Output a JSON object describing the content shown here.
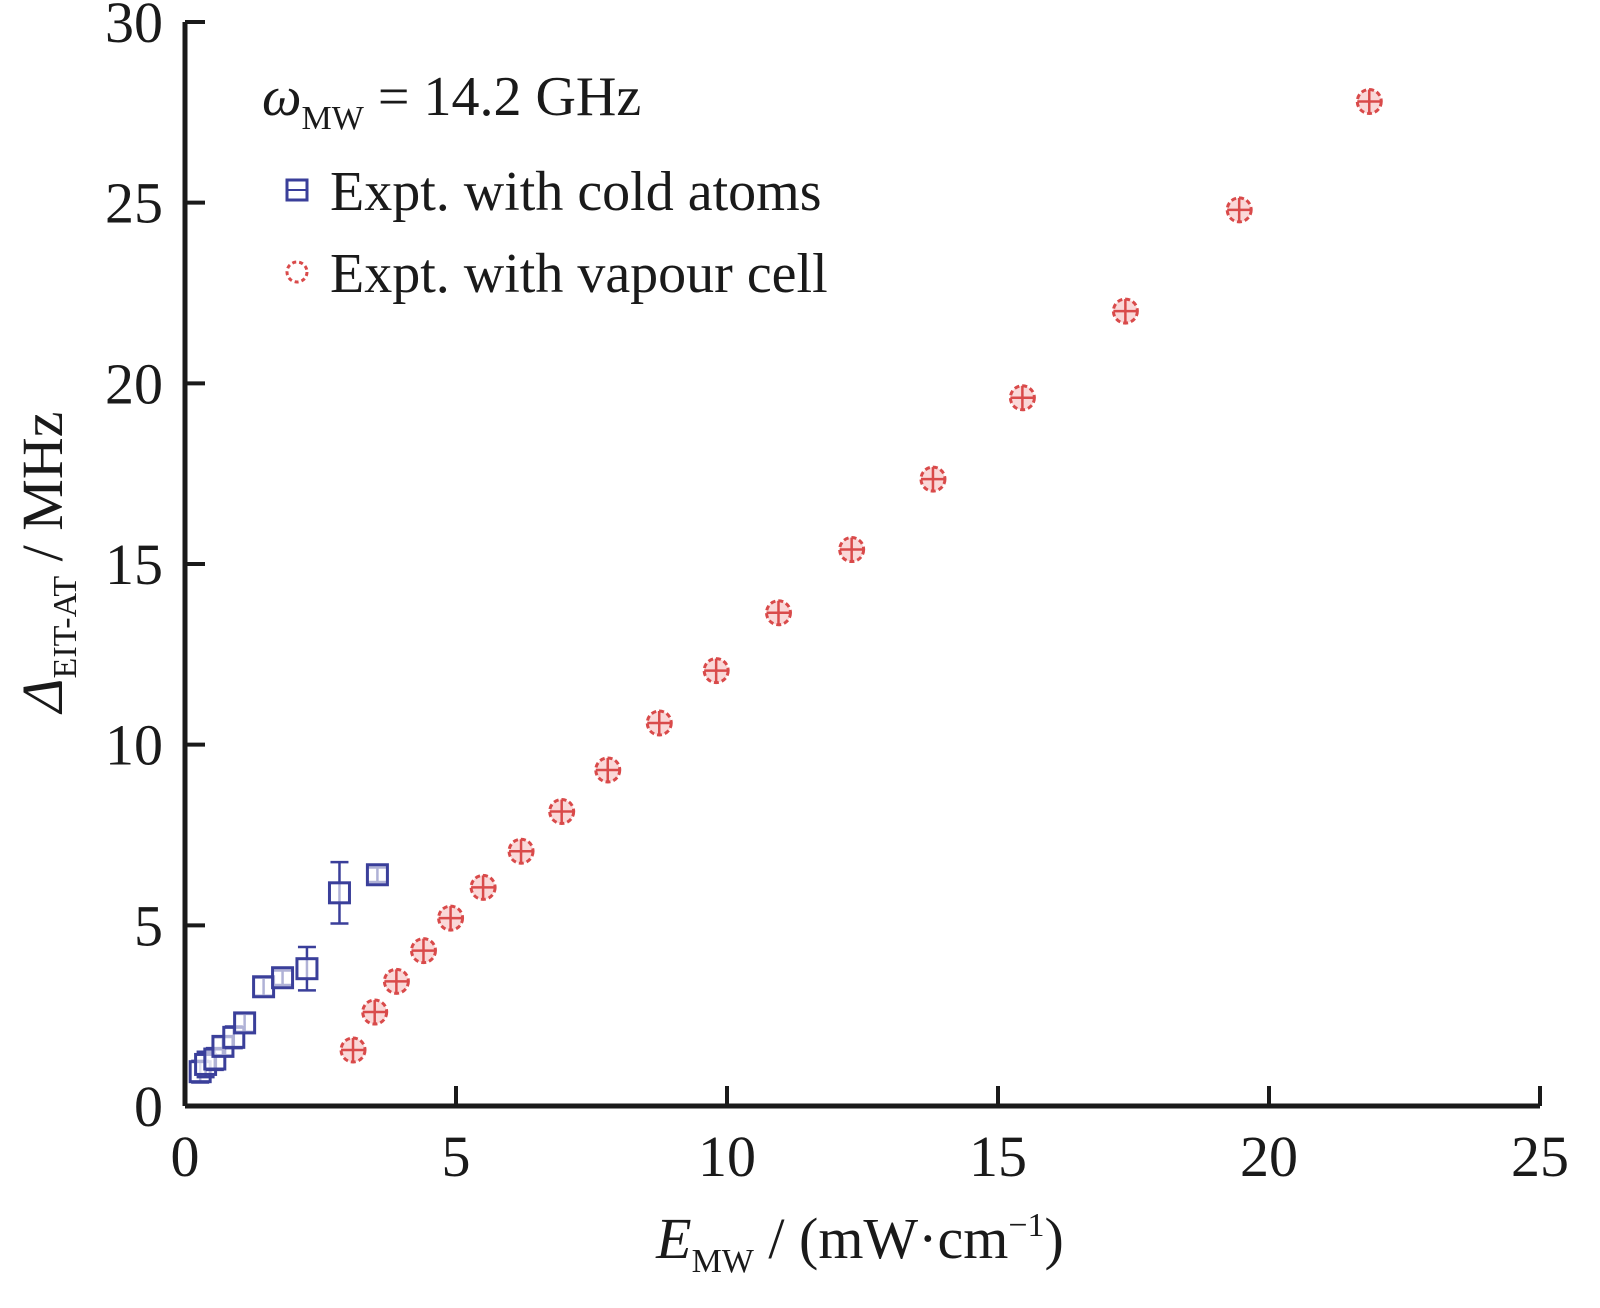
{
  "chart_data": {
    "type": "scatter",
    "title": "",
    "annotation": {
      "symbol": "ω",
      "subscript": "MW",
      "text": " = 14.2 GHz"
    },
    "xlabel": {
      "symbol": "E",
      "subscript": "MW",
      "unit": " / (mW·cm",
      "superscript": "−1",
      "close": ")"
    },
    "ylabel": {
      "symbol": "Δ",
      "subscript": "EIT-AT",
      "unit": " / MHz"
    },
    "xlim": [
      0,
      25
    ],
    "ylim": [
      0,
      30
    ],
    "xticks": [
      "0",
      "5",
      "10",
      "15",
      "20",
      "25"
    ],
    "yticks": [
      "0",
      "5",
      "10",
      "15",
      "20",
      "25",
      "30"
    ],
    "legend_position": "top-left",
    "grid": false,
    "series": [
      {
        "name": "Expt. with cold atoms",
        "marker": "square",
        "color": "#3a3f9a",
        "points": [
          {
            "x": 0.28,
            "y": 0.95,
            "err": 0.3
          },
          {
            "x": 0.38,
            "y": 1.15,
            "err": 0.35
          },
          {
            "x": 0.55,
            "y": 1.3,
            "err": 0.3
          },
          {
            "x": 0.7,
            "y": 1.65,
            "err": 0.25
          },
          {
            "x": 0.9,
            "y": 1.9,
            "err": 0.3
          },
          {
            "x": 1.1,
            "y": 2.3,
            "err": 0.25
          },
          {
            "x": 1.45,
            "y": 3.3,
            "err": 0.25
          },
          {
            "x": 1.8,
            "y": 3.55,
            "err": 0.2
          },
          {
            "x": 2.25,
            "y": 3.8,
            "err": 0.6
          },
          {
            "x": 2.85,
            "y": 5.9,
            "err": 0.85
          },
          {
            "x": 3.55,
            "y": 6.4,
            "err": 0.2
          }
        ]
      },
      {
        "name": "Expt. with vapour cell",
        "marker": "circle-cross",
        "color": "#d94a4a",
        "points": [
          {
            "x": 3.1,
            "y": 1.55
          },
          {
            "x": 3.5,
            "y": 2.6
          },
          {
            "x": 3.9,
            "y": 3.45
          },
          {
            "x": 4.4,
            "y": 4.3
          },
          {
            "x": 4.9,
            "y": 5.2
          },
          {
            "x": 5.5,
            "y": 6.05
          },
          {
            "x": 6.2,
            "y": 7.05
          },
          {
            "x": 6.95,
            "y": 8.15
          },
          {
            "x": 7.8,
            "y": 9.3
          },
          {
            "x": 8.75,
            "y": 10.6
          },
          {
            "x": 9.8,
            "y": 12.05
          },
          {
            "x": 10.95,
            "y": 13.65
          },
          {
            "x": 12.3,
            "y": 15.4
          },
          {
            "x": 13.8,
            "y": 17.35
          },
          {
            "x": 15.45,
            "y": 19.6
          },
          {
            "x": 17.35,
            "y": 22.0
          },
          {
            "x": 19.45,
            "y": 24.8
          },
          {
            "x": 21.85,
            "y": 27.8
          }
        ]
      }
    ]
  }
}
